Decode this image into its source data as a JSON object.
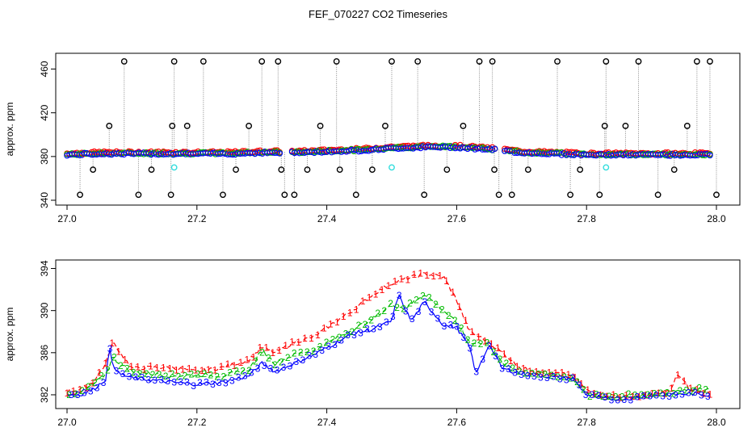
{
  "figure": {
    "title": "FEF_070227  CO2 Timeseries"
  },
  "chart_data": [
    {
      "type": "scatter",
      "title": "",
      "xlabel": "",
      "ylabel": "approx. ppm",
      "xlim": [
        27.0,
        28.0
      ],
      "ylim": [
        340,
        470
      ],
      "xticks": [
        "27.0",
        "27.2",
        "27.4",
        "27.6",
        "27.8",
        "28.0"
      ],
      "yticks": [
        "340",
        "380",
        "420",
        "460"
      ],
      "grid": false,
      "colors": {
        "series1": "#ff0000",
        "series2": "#00bb00",
        "series3": "#0000ff",
        "outlier": "#000000",
        "flag": "#33dddd",
        "spike_line": "#888888"
      },
      "baseline": {
        "x": [
          27.0,
          27.05,
          27.1,
          27.15,
          27.2,
          27.25,
          27.3,
          27.33,
          27.36,
          27.4,
          27.45,
          27.5,
          27.55,
          27.6,
          27.65,
          27.67,
          27.7,
          27.75,
          27.8,
          27.85,
          27.9,
          27.95,
          27.99
        ],
        "values": [
          382,
          383,
          383,
          383,
          383,
          383,
          384,
          384,
          384,
          385,
          386,
          388,
          389,
          389,
          387,
          386,
          384,
          383,
          382,
          382,
          382,
          382,
          382
        ]
      },
      "outliers": {
        "x": [
          27.02,
          27.04,
          27.065,
          27.088,
          27.11,
          27.13,
          27.16,
          27.162,
          27.165,
          27.185,
          27.21,
          27.24,
          27.26,
          27.28,
          27.3,
          27.325,
          27.33,
          27.335,
          27.35,
          27.37,
          27.39,
          27.415,
          27.42,
          27.445,
          27.47,
          27.49,
          27.5,
          27.54,
          27.55,
          27.585,
          27.61,
          27.635,
          27.655,
          27.658,
          27.665,
          27.685,
          27.71,
          27.755,
          27.775,
          27.79,
          27.82,
          27.828,
          27.83,
          27.86,
          27.88,
          27.91,
          27.935,
          27.955,
          27.97,
          27.99,
          28.0
        ],
        "values": [
          345,
          368,
          408,
          467,
          345,
          368,
          345,
          408,
          467,
          408,
          467,
          345,
          368,
          408,
          467,
          467,
          368,
          345,
          345,
          368,
          408,
          467,
          368,
          345,
          368,
          408,
          467,
          467,
          345,
          368,
          408,
          467,
          467,
          368,
          345,
          345,
          368,
          467,
          345,
          368,
          345,
          408,
          467,
          408,
          467,
          345,
          368,
          408,
          467,
          467,
          345
        ]
      },
      "flags": {
        "x": [
          27.165,
          27.5,
          27.83
        ],
        "values": [
          370,
          370,
          370
        ]
      }
    },
    {
      "type": "line",
      "title": "",
      "xlabel": "",
      "ylabel": "approx. ppm",
      "xlim": [
        27.0,
        28.0
      ],
      "ylim": [
        381,
        394.5
      ],
      "xticks": [
        "27.0",
        "27.2",
        "27.4",
        "27.6",
        "27.8",
        "28.0"
      ],
      "yticks": [
        "382",
        "386",
        "390",
        "394"
      ],
      "grid": false,
      "series": [
        {
          "marker": "1",
          "color": "#ff0000",
          "x": [
            27.0,
            27.02,
            27.04,
            27.06,
            27.07,
            27.08,
            27.1,
            27.13,
            27.16,
            27.2,
            27.24,
            27.28,
            27.3,
            27.32,
            27.35,
            27.38,
            27.41,
            27.44,
            27.47,
            27.5,
            27.52,
            27.55,
            27.58,
            27.6,
            27.62,
            27.65,
            27.67,
            27.7,
            27.73,
            27.76,
            27.78,
            27.8,
            27.83,
            27.86,
            27.9,
            27.93,
            27.94,
            27.96,
            27.99
          ],
          "values": [
            382.3,
            382.5,
            383.2,
            385.0,
            387.0,
            386.2,
            384.5,
            384.6,
            384.6,
            384.2,
            384.6,
            385.3,
            386.5,
            386.0,
            387.0,
            387.5,
            388.8,
            390.0,
            391.5,
            392.6,
            393.0,
            393.5,
            393.2,
            391.0,
            388.0,
            387.0,
            386.0,
            384.5,
            384.2,
            384.0,
            383.8,
            382.4,
            382.0,
            381.8,
            382.0,
            382.4,
            384.0,
            382.5,
            382.2
          ]
        },
        {
          "marker": "2",
          "color": "#00bb00",
          "x": [
            27.0,
            27.02,
            27.04,
            27.06,
            27.07,
            27.08,
            27.1,
            27.13,
            27.16,
            27.2,
            27.24,
            27.28,
            27.3,
            27.32,
            27.35,
            27.38,
            27.41,
            27.44,
            27.47,
            27.5,
            27.52,
            27.55,
            27.58,
            27.6,
            27.62,
            27.65,
            27.67,
            27.7,
            27.73,
            27.76,
            27.78,
            27.8,
            27.83,
            27.86,
            27.9,
            27.93,
            27.96,
            27.99
          ],
          "values": [
            382.1,
            382.2,
            383.0,
            384.0,
            385.6,
            385.0,
            384.2,
            384.0,
            383.8,
            383.9,
            383.8,
            384.4,
            386.2,
            385.0,
            385.8,
            386.3,
            387.2,
            388.2,
            389.2,
            390.6,
            390.2,
            391.6,
            390.0,
            388.8,
            387.0,
            386.8,
            385.0,
            384.2,
            384.0,
            383.8,
            383.5,
            382.0,
            381.8,
            381.9,
            382.0,
            382.2,
            382.5,
            382.6
          ]
        },
        {
          "marker": "3",
          "color": "#0000ff",
          "x": [
            27.0,
            27.02,
            27.04,
            27.06,
            27.065,
            27.07,
            27.08,
            27.1,
            27.13,
            27.16,
            27.2,
            27.24,
            27.28,
            27.3,
            27.32,
            27.35,
            27.38,
            27.41,
            27.44,
            27.47,
            27.5,
            27.51,
            27.53,
            27.55,
            27.58,
            27.6,
            27.62,
            27.63,
            27.65,
            27.67,
            27.7,
            27.73,
            27.76,
            27.78,
            27.8,
            27.83,
            27.86,
            27.9,
            27.93,
            27.96,
            27.99
          ],
          "values": [
            382.0,
            382.0,
            382.5,
            383.5,
            386.5,
            385.0,
            384.0,
            383.6,
            383.4,
            383.2,
            383.0,
            383.2,
            383.8,
            385.0,
            384.2,
            385.0,
            385.8,
            386.8,
            387.8,
            388.2,
            389.0,
            391.5,
            389.0,
            390.8,
            388.6,
            388.4,
            386.5,
            384.0,
            386.8,
            384.5,
            384.0,
            383.8,
            383.6,
            383.5,
            382.0,
            381.6,
            381.6,
            381.9,
            382.0,
            382.1,
            382.0
          ]
        }
      ]
    }
  ]
}
